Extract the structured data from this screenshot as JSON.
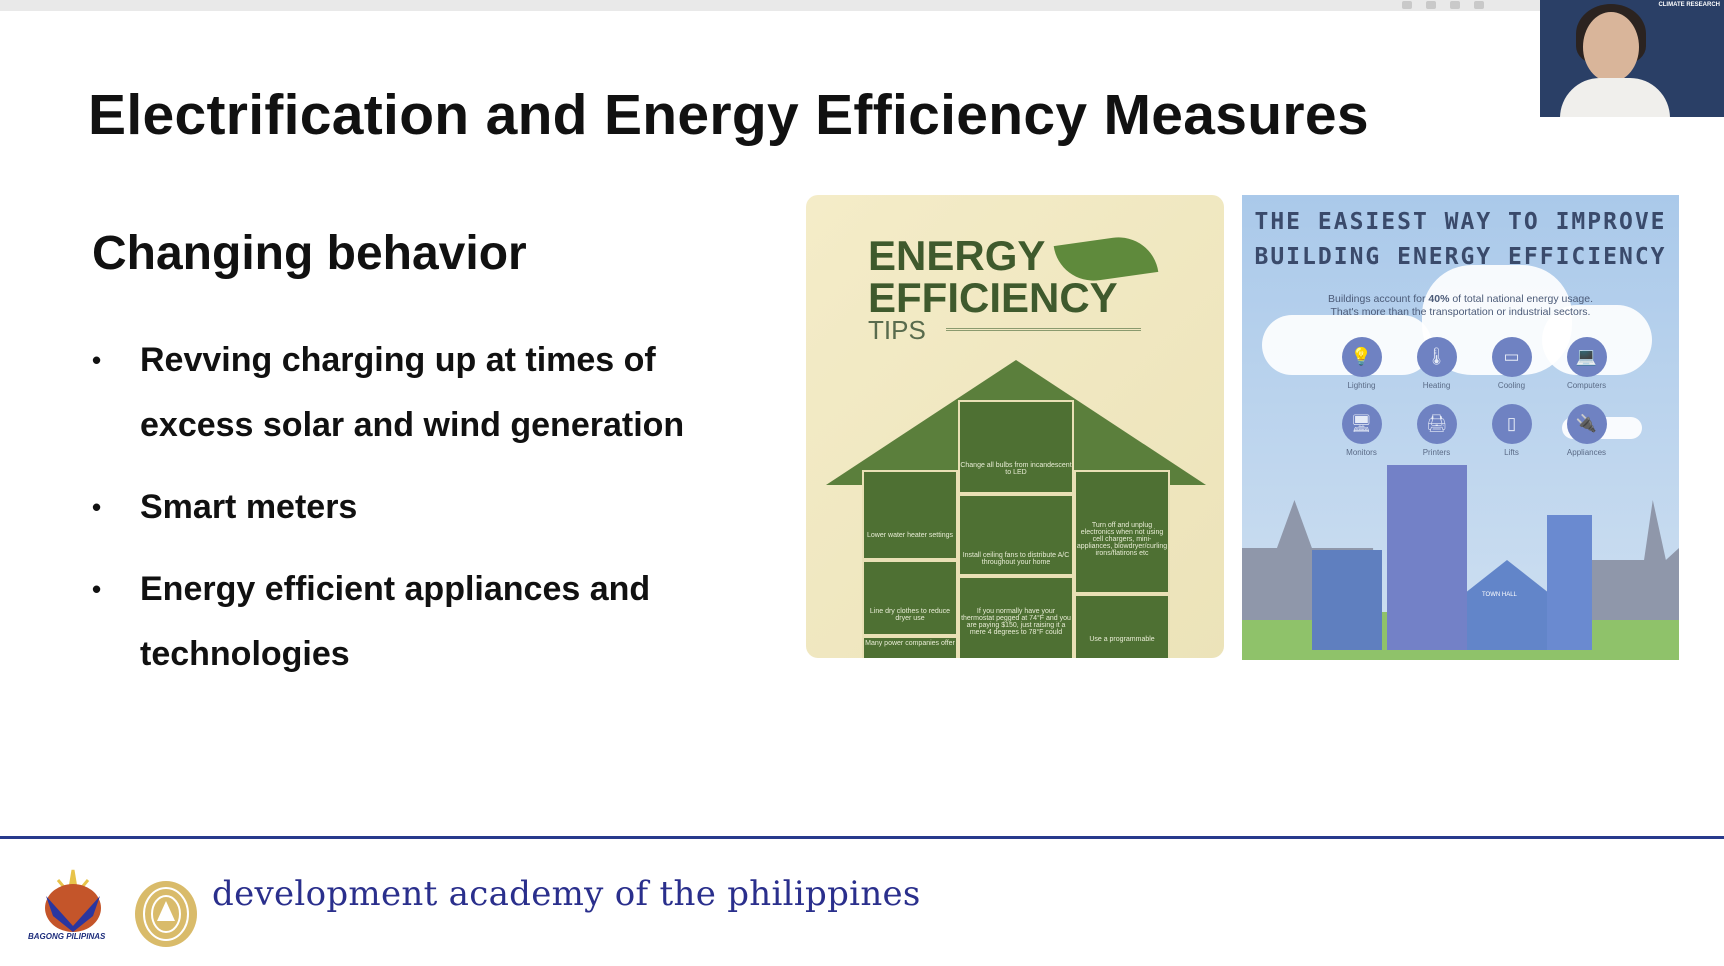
{
  "window": {
    "webcam_label": "CLIMATE RESEARCH"
  },
  "slide": {
    "title": "Electrification and Energy Efficiency Measures",
    "subtitle": "Changing behavior",
    "bullets": [
      "Revving charging up at times of excess solar and wind generation",
      "Smart meters",
      "Energy efficient  appliances and technologies"
    ]
  },
  "infographic_left": {
    "title_line1": "ENERGY",
    "title_line2": "EFFICIENCY",
    "title_line3": "TIPS",
    "tips": [
      "Change all bulbs from incandescent to LED",
      "Lower water heater settings",
      "Install ceiling fans to distribute A/C throughout your home",
      "Turn off and unplug electronics when not using cell chargers, mini-appliances, blowdryer/curling irons/flatirons etc",
      "Line dry clothes to reduce dryer use",
      "Many power companies offer",
      "If you normally have your thermostat pegged at 74°F and you are paying $150, just raising it a mere 4 degrees to 78°F could",
      "Use a programmable"
    ]
  },
  "infographic_right": {
    "title_line1": "THE EASIEST WAY TO IMPROVE",
    "title_line2": "BUILDING ENERGY EFFICIENCY",
    "text_pre": "Buildings account for ",
    "text_bold": "40%",
    "text_post": " of total national energy usage.",
    "text_line2": "That's more than the transportation or industrial sectors.",
    "categories": [
      "Lighting",
      "Heating",
      "Cooling",
      "Computers",
      "Monitors",
      "Printers",
      "Lifts",
      "Appliances"
    ],
    "building_label": "TOWN HALL"
  },
  "footer": {
    "logo1_text": "BAGONG PILIPINAS",
    "org_name": "development academy of the philippines",
    "line_color": "#283a8c"
  }
}
